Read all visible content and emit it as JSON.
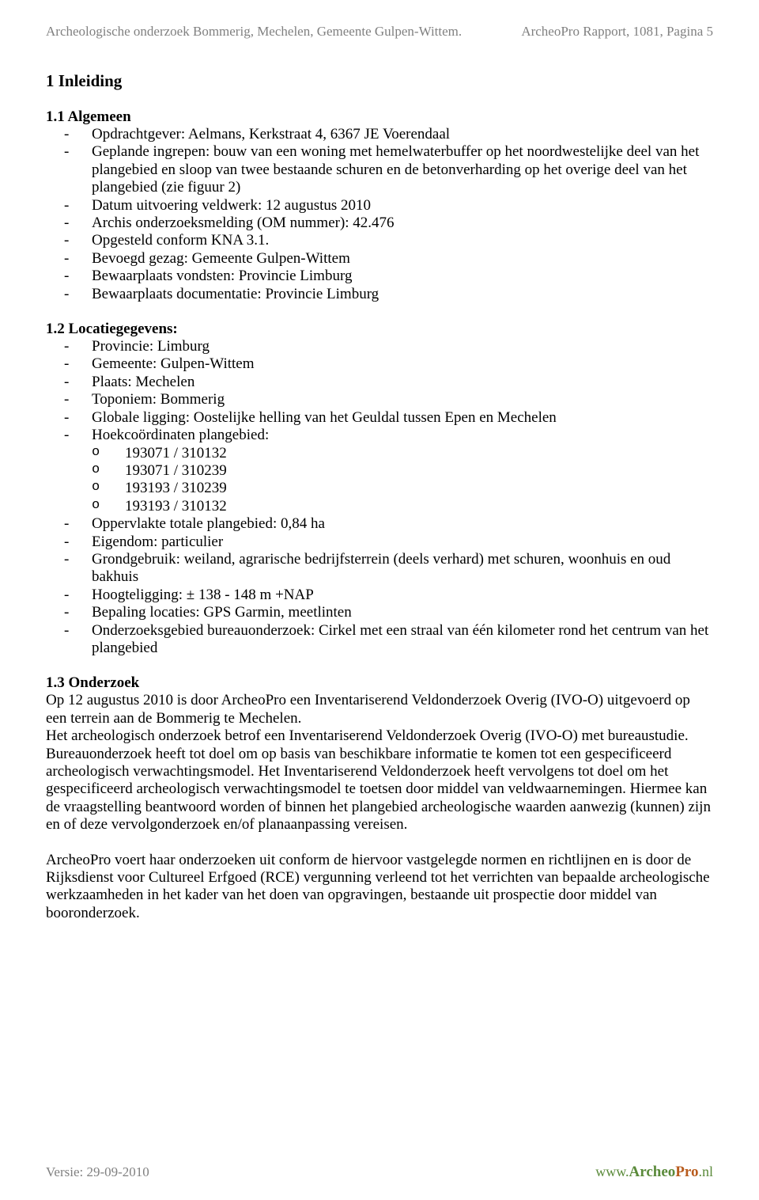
{
  "header": {
    "left": "Archeologische onderzoek  Bommerig, Mechelen, Gemeente Gulpen-Wittem.",
    "right": "ArcheoPro Rapport, 1081, Pagina 5"
  },
  "title": "1 Inleiding",
  "s1": {
    "head": "1.1 Algemeen",
    "items": [
      "Opdrachtgever: Aelmans, Kerkstraat 4, 6367 JE Voerendaal",
      "Geplande ingrepen: bouw van een woning met hemelwaterbuffer op het noordwestelijke deel van het plangebied en sloop van twee bestaande schuren en de betonverharding op het overige deel van het plangebied (zie figuur 2)",
      "Datum uitvoering veldwerk: 12 augustus 2010",
      "Archis onderzoeksmelding (OM nummer): 42.476",
      "Opgesteld conform KNA 3.1.",
      "Bevoegd gezag: Gemeente Gulpen-Wittem",
      "Bewaarplaats vondsten: Provincie Limburg",
      "Bewaarplaats documentatie: Provincie Limburg"
    ]
  },
  "s2": {
    "head": "1.2 Locatiegegevens:",
    "items_a": [
      "Provincie: Limburg",
      "Gemeente: Gulpen-Wittem",
      "Plaats: Mechelen",
      "Toponiem: Bommerig",
      "Globale ligging:  Oostelijke helling van het Geuldal tussen Epen en Mechelen",
      "Hoekcoördinaten plangebied:"
    ],
    "coords": [
      "193071 / 310132",
      "193071 / 310239",
      "193193 / 310239",
      "193193 / 310132"
    ],
    "items_b": [
      "Oppervlakte totale plangebied: 0,84 ha",
      "Eigendom: particulier",
      "Grondgebruik: weiland, agrarische bedrijfsterrein (deels verhard) met schuren, woonhuis en oud bakhuis",
      "Hoogteligging: ± 138 - 148 m +NAP",
      "Bepaling locaties: GPS Garmin, meetlinten",
      "Onderzoeksgebied bureauonderzoek: Cirkel met een straal van één kilometer rond het centrum van het plangebied"
    ]
  },
  "s3": {
    "head": "1.3 Onderzoek",
    "p1": "Op 12 augustus 2010 is door ArcheoPro een Inventariserend Veldonderzoek Overig (IVO-O) uitgevoerd op een terrein aan de Bommerig te Mechelen.",
    "p2": "Het archeologisch onderzoek betrof een Inventariserend Veldonderzoek Overig (IVO-O) met bureaustudie. Bureauonderzoek heeft tot doel om op basis van beschikbare informatie te komen tot een gespecificeerd archeologisch verwachtingsmodel. Het Inventariserend Veldonderzoek heeft vervolgens tot doel om het gespecificeerd archeologisch verwachtingsmodel te toetsen door middel van veldwaarnemingen. Hiermee kan de vraagstelling beantwoord worden of binnen het plangebied archeologische waarden aanwezig (kunnen) zijn en of deze vervolgonderzoek en/of planaanpassing vereisen.",
    "p3": "ArcheoPro voert haar onderzoeken uit conform de hiervoor vastgelegde normen en richtlijnen en is door de Rijksdienst voor Cultureel Erfgoed (RCE) vergunning verleend tot het verrichten van bepaalde archeologische werkzaamheden in het kader van het doen van opgravingen, bestaande uit prospectie door middel van booronderzoek."
  },
  "footer": {
    "left": "Versie: 29-09-2010",
    "brand_a": "Archeo",
    "brand_p": "Pro",
    "brand_n": ".nl",
    "www": "www."
  },
  "colors": {
    "text": "#000000",
    "muted": "#808080",
    "brand_green": "#5a8a3a",
    "brand_orange": "#b85c1e",
    "background": "#ffffff"
  }
}
